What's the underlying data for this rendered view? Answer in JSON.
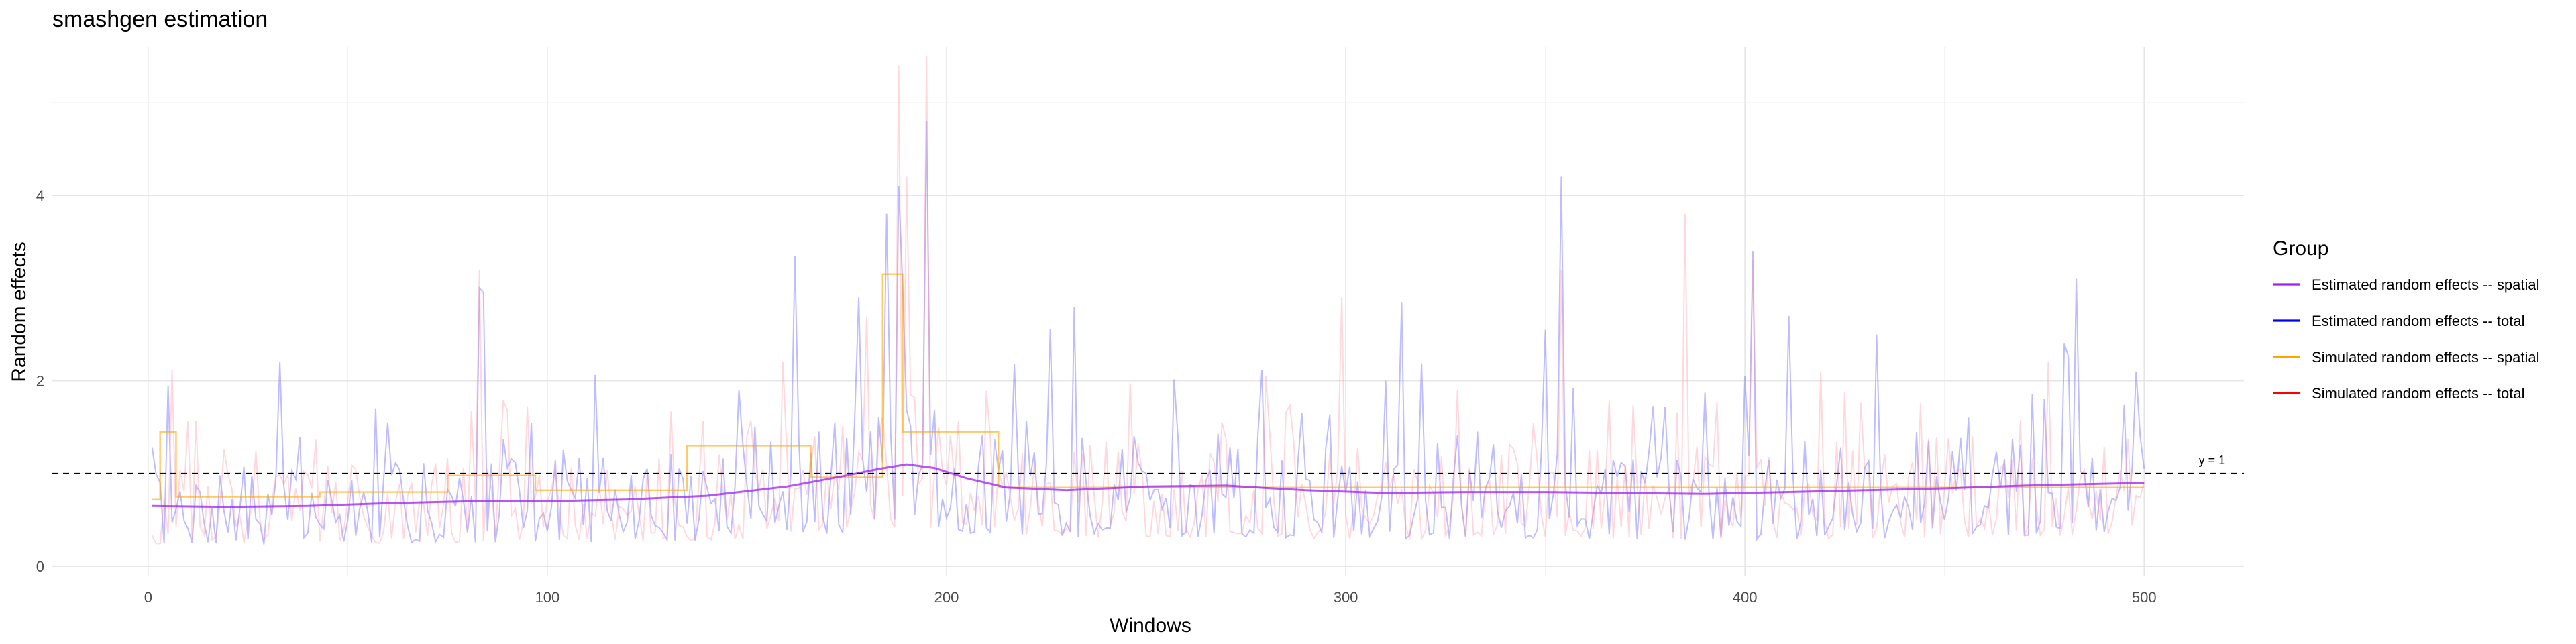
{
  "chart_data": {
    "type": "line",
    "title": "smashgen estimation",
    "xlabel": "Windows",
    "ylabel": "Random effects",
    "xlim": [
      -24,
      525
    ],
    "ylim": [
      -0.1,
      5.6
    ],
    "x_ticks": [
      0,
      100,
      200,
      300,
      400,
      500
    ],
    "y_ticks": [
      0,
      2,
      4
    ],
    "grid": true,
    "reference_line": {
      "y": 1,
      "label": "y = 1",
      "style": "dashed",
      "color": "#000000"
    },
    "legend": {
      "title": "Group",
      "position": "right",
      "entries": [
        {
          "label": "Estimated random effects -- spatial",
          "color": "#a020f0"
        },
        {
          "label": "Estimated random effects -- total",
          "color": "#0000ff"
        },
        {
          "label": "Simulated random effects -- spatial",
          "color": "#ffa500"
        },
        {
          "label": "Simulated random effects -- total",
          "color": "#ff0000"
        }
      ]
    },
    "series": [
      {
        "name": "Simulated random effects -- spatial",
        "color": "#ffa500",
        "opacity": 0.6,
        "step": true,
        "points": [
          [
            1,
            0.72
          ],
          [
            3,
            1.45
          ],
          [
            6,
            1.45
          ],
          [
            7,
            0.75
          ],
          [
            42,
            0.75
          ],
          [
            43,
            0.8
          ],
          [
            74,
            0.8
          ],
          [
            75,
            0.98
          ],
          [
            96,
            0.98
          ],
          [
            97,
            0.82
          ],
          [
            134,
            0.82
          ],
          [
            135,
            1.3
          ],
          [
            165,
            1.3
          ],
          [
            166,
            0.96
          ],
          [
            183,
            0.96
          ],
          [
            184,
            3.15
          ],
          [
            188,
            3.15
          ],
          [
            189,
            1.45
          ],
          [
            212,
            1.45
          ],
          [
            213,
            0.85
          ],
          [
            500,
            0.85
          ]
        ]
      },
      {
        "name": "Estimated random effects -- spatial",
        "color": "#a020f0",
        "opacity": 0.75,
        "step": false,
        "points": [
          [
            1,
            0.65
          ],
          [
            20,
            0.64
          ],
          [
            40,
            0.65
          ],
          [
            60,
            0.68
          ],
          [
            80,
            0.7
          ],
          [
            100,
            0.7
          ],
          [
            120,
            0.72
          ],
          [
            140,
            0.76
          ],
          [
            160,
            0.86
          ],
          [
            175,
            0.98
          ],
          [
            183,
            1.05
          ],
          [
            190,
            1.1
          ],
          [
            197,
            1.06
          ],
          [
            205,
            0.95
          ],
          [
            215,
            0.85
          ],
          [
            230,
            0.82
          ],
          [
            250,
            0.86
          ],
          [
            270,
            0.87
          ],
          [
            290,
            0.82
          ],
          [
            310,
            0.79
          ],
          [
            330,
            0.8
          ],
          [
            350,
            0.8
          ],
          [
            370,
            0.79
          ],
          [
            390,
            0.78
          ],
          [
            410,
            0.8
          ],
          [
            430,
            0.82
          ],
          [
            450,
            0.84
          ],
          [
            470,
            0.87
          ],
          [
            490,
            0.89
          ],
          [
            500,
            0.9
          ]
        ]
      }
    ],
    "noisy_series": [
      {
        "name": "Estimated random effects -- total",
        "color": "#7b7bff",
        "opacity": 0.5,
        "n": 500,
        "seed": 7
      },
      {
        "name": "Simulated random effects -- total",
        "color": "#ff8fa0",
        "opacity": 0.35,
        "n": 500,
        "seed": 31
      }
    ],
    "peaks": [
      [
        33,
        2.2
      ],
      [
        83,
        3.0
      ],
      [
        84,
        2.95
      ],
      [
        148,
        1.9
      ],
      [
        162,
        3.35
      ],
      [
        178,
        2.9
      ],
      [
        185,
        3.8
      ],
      [
        188,
        4.1
      ],
      [
        189,
        3.05
      ],
      [
        195,
        4.8
      ],
      [
        232,
        2.8
      ],
      [
        310,
        2.0
      ],
      [
        314,
        2.85
      ],
      [
        350,
        2.55
      ],
      [
        354,
        4.2
      ],
      [
        400,
        2.05
      ],
      [
        402,
        3.4
      ],
      [
        411,
        2.7
      ],
      [
        433,
        2.5
      ],
      [
        480,
        2.4
      ],
      [
        483,
        3.1
      ],
      [
        498,
        2.1
      ]
    ],
    "peaks_total": [
      [
        83,
        3.2
      ],
      [
        188,
        5.4
      ],
      [
        195,
        5.5
      ],
      [
        190,
        4.2
      ],
      [
        299,
        2.9
      ],
      [
        354,
        3.2
      ],
      [
        385,
        3.8
      ],
      [
        402,
        3.3
      ],
      [
        476,
        2.2
      ]
    ]
  }
}
